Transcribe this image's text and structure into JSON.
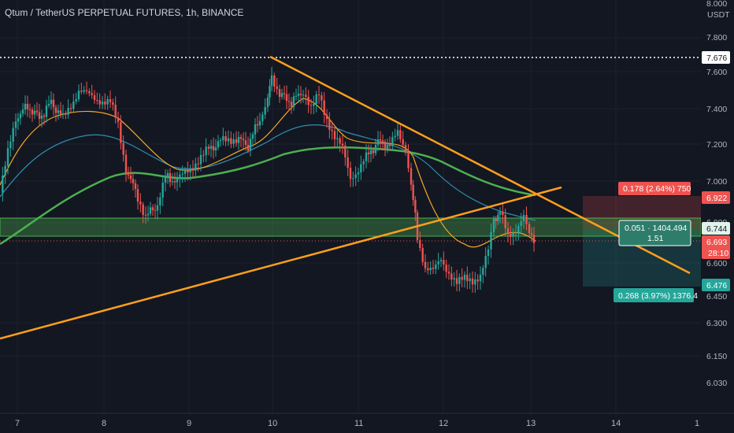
{
  "header": {
    "title": "Qtum / TetherUS PERPETUAL FUTURES, 1h, BINANCE"
  },
  "price_axis": {
    "currency": "USDT",
    "ticks": [
      "8.000",
      "7.800",
      "7.600",
      "7.400",
      "7.200",
      "7.000",
      "6.800",
      "6.600",
      "6.450",
      "6.300",
      "6.150",
      "6.030"
    ]
  },
  "time_axis": {
    "ticks": [
      "7",
      "8",
      "9",
      "10",
      "11",
      "12",
      "13",
      "14",
      "1"
    ]
  },
  "price_tags": {
    "high_line": "7.676",
    "target": "6.922",
    "entry": "6.744",
    "last": "6.693",
    "countdown": "28:10",
    "stop": "6.476"
  },
  "position_tool": {
    "upper_label": "0.178 (2.64%) 750",
    "middle_line1": "0.051 · 1404.494",
    "middle_line2": "1.51",
    "lower_label": "0.268 (3.97%) 1376.4"
  },
  "colors": {
    "background": "#131722",
    "up": "#26a69a",
    "down": "#ef5350",
    "trendline": "#ff9f1c",
    "ma_green": "#4caf50",
    "ma_orange": "#f5a623",
    "ma_blue": "#2f8fb0"
  }
}
